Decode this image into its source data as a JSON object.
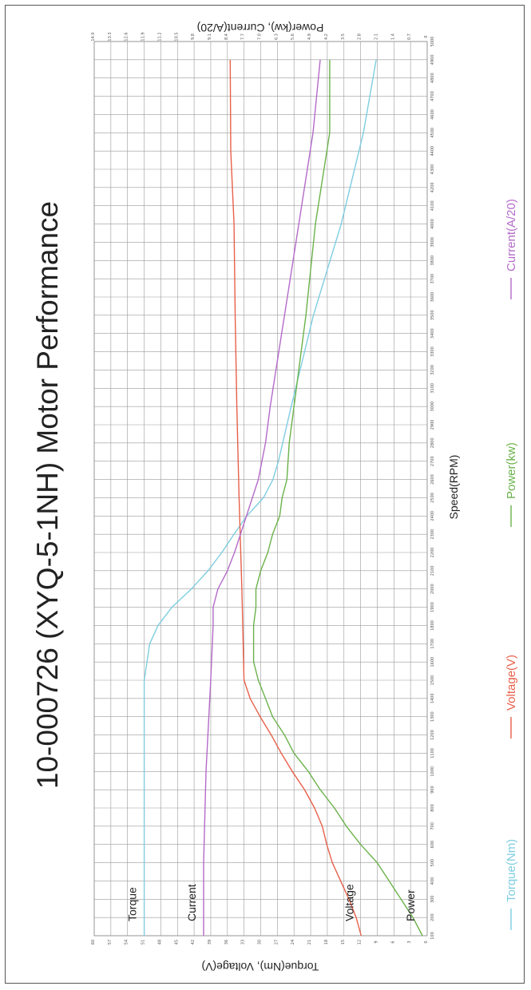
{
  "chart_data": {
    "type": "line",
    "title": "10-000726 (XYQ-5-1NH) Motor Performance",
    "xlabel": "Speed(RPM)",
    "ylabel_left": "Torque(Nm), Voltage(V)",
    "ylabel_right": "Power(kw), Current(A/20)",
    "x_ticks": [
      100,
      200,
      300,
      400,
      500,
      600,
      700,
      800,
      900,
      1000,
      1100,
      1200,
      1300,
      1400,
      1500,
      1600,
      1700,
      1800,
      1900,
      2000,
      2100,
      2200,
      2300,
      2400,
      2500,
      2600,
      2700,
      2800,
      2900,
      3000,
      3100,
      3200,
      3300,
      3400,
      3500,
      3600,
      3700,
      3800,
      3900,
      4000,
      4100,
      4200,
      4300,
      4400,
      4500,
      4600,
      4700,
      4800,
      4900,
      5000
    ],
    "x_tick_labels": [
      "100",
      "200",
      "300",
      "400",
      "500",
      "600",
      "700",
      "800",
      "900",
      "1000",
      "1100",
      "1200",
      "1300",
      "1400",
      "1500",
      "1600",
      "1700",
      "1800",
      "1900",
      "2000",
      "2100",
      "2200",
      "2300",
      "2400",
      "2500",
      "2600",
      "2700",
      "2800",
      "2900",
      "3000",
      "3100",
      "3200",
      "3300",
      "3400",
      "3500",
      "3600",
      "3700",
      "3800",
      "3900",
      "4000",
      "4100",
      "4200",
      "4300",
      "4400",
      "4500",
      "4600",
      "4700",
      "4800",
      "4900",
      "5000"
    ],
    "xlim": [
      100,
      5000
    ],
    "y_left_ticks": [
      0,
      3,
      6,
      9,
      12,
      15,
      18,
      21,
      24,
      27,
      30,
      33,
      36,
      39,
      42,
      45,
      48,
      51,
      54,
      57,
      60
    ],
    "y_left_tick_labels": [
      "0",
      "3",
      "6",
      "9",
      "12",
      "15",
      "18",
      "21",
      "24",
      "27",
      "30",
      "33",
      "36",
      "39",
      "42",
      "45",
      "48",
      "51",
      "54",
      "57",
      "60"
    ],
    "ylim_left": [
      0,
      60
    ],
    "y_right_ticks": [
      0,
      0.7,
      1.4,
      2.1,
      2.8,
      3.5,
      4.2,
      4.9,
      5.6,
      6.3,
      7.0,
      7.7,
      8.4,
      9.1,
      9.8,
      10.5,
      11.2,
      11.9,
      12.6,
      13.3,
      14.0
    ],
    "y_right_tick_labels": [
      "0",
      "0.7",
      "1.4",
      "2.1",
      "2.8",
      "3.5",
      "4.2",
      "4.9",
      "5.6",
      "6.3",
      "7.0",
      "7.7",
      "8.4",
      "9.1",
      "9.8",
      "10.5",
      "11.2",
      "11.9",
      "12.6",
      "13.3",
      "14.0"
    ],
    "ylim_right": [
      0,
      14
    ],
    "grid": true,
    "series": [
      {
        "name": "Torque(Nm)",
        "color": "#7ecde0",
        "axis": "left",
        "x": [
          100,
          500,
          1000,
          1500,
          1700,
          1800,
          1900,
          2000,
          2100,
          2200,
          2300,
          2400,
          2500,
          2600,
          2700,
          3000,
          3500,
          4000,
          4500,
          4900
        ],
        "y": [
          51,
          51,
          51,
          51,
          50,
          48.5,
          46,
          42.5,
          39.5,
          37,
          34.8,
          32.5,
          29.5,
          27.8,
          26.8,
          24.5,
          20.5,
          15.5,
          11.5,
          9.2
        ]
      },
      {
        "name": "Voltage(V)",
        "color": "#e8604a",
        "axis": "left",
        "x": [
          100,
          200,
          300,
          400,
          500,
          600,
          700,
          800,
          900,
          1000,
          1100,
          1200,
          1300,
          1400,
          1500,
          2000,
          2500,
          3000,
          3500,
          4000,
          4400,
          4900
        ],
        "y": [
          11.9,
          12.8,
          14.1,
          15.6,
          17.1,
          18.1,
          18.9,
          20.3,
          22.1,
          24.3,
          26.3,
          28.1,
          30.1,
          31.9,
          33.0,
          33.4,
          33.9,
          34.3,
          34.6,
          34.8,
          35.4,
          35.5
        ],
        "labels": [
          "Voltage"
        ]
      },
      {
        "name": "Power(kw)",
        "color": "#6ab24a",
        "axis": "right",
        "x": [
          100,
          200,
          300,
          400,
          500,
          600,
          700,
          800,
          900,
          1000,
          1100,
          1200,
          1300,
          1400,
          1500,
          1600,
          1700,
          1800,
          1900,
          2000,
          2100,
          2200,
          2300,
          2400,
          2500,
          2600,
          2800,
          3000,
          3500,
          4000,
          4500,
          4900
        ],
        "y": [
          0.2,
          0.6,
          1.1,
          1.6,
          2.1,
          2.8,
          3.4,
          3.9,
          4.5,
          5.0,
          5.6,
          6.0,
          6.5,
          6.8,
          7.1,
          7.3,
          7.3,
          7.3,
          7.2,
          7.2,
          7.0,
          6.7,
          6.5,
          6.2,
          6.1,
          5.9,
          5.8,
          5.6,
          5.1,
          4.7,
          4.1,
          4.1
        ]
      },
      {
        "name": "Current(A/20)",
        "color": "#b46ac8",
        "axis": "right",
        "x": [
          100,
          500,
          1000,
          1500,
          1800,
          1900,
          2000,
          2100,
          2200,
          2400,
          2600,
          2800,
          3000,
          3500,
          4000,
          4500,
          4900
        ],
        "y": [
          9.4,
          9.4,
          9.3,
          9.1,
          9.0,
          9.0,
          8.8,
          8.4,
          8.1,
          7.6,
          7.1,
          6.8,
          6.6,
          6.0,
          5.4,
          4.8,
          4.5
        ]
      }
    ],
    "curve_labels": [
      {
        "text": "Torque",
        "series": "Torque(Nm)"
      },
      {
        "text": "Current",
        "series": "Current(A/20)"
      },
      {
        "text": "Voltage",
        "series": "Voltage(V)"
      },
      {
        "text": "Power",
        "series": "Power(kw)"
      }
    ],
    "legend": {
      "placement": "right",
      "items": [
        {
          "label": "Torque(Nm)",
          "color": "#7ecde0"
        },
        {
          "label": "Voltage(V)",
          "color": "#e8604a"
        },
        {
          "label": "Power(kw)",
          "color": "#6ab24a"
        },
        {
          "label": "Current(A/20)",
          "color": "#b46ac8"
        }
      ]
    }
  }
}
